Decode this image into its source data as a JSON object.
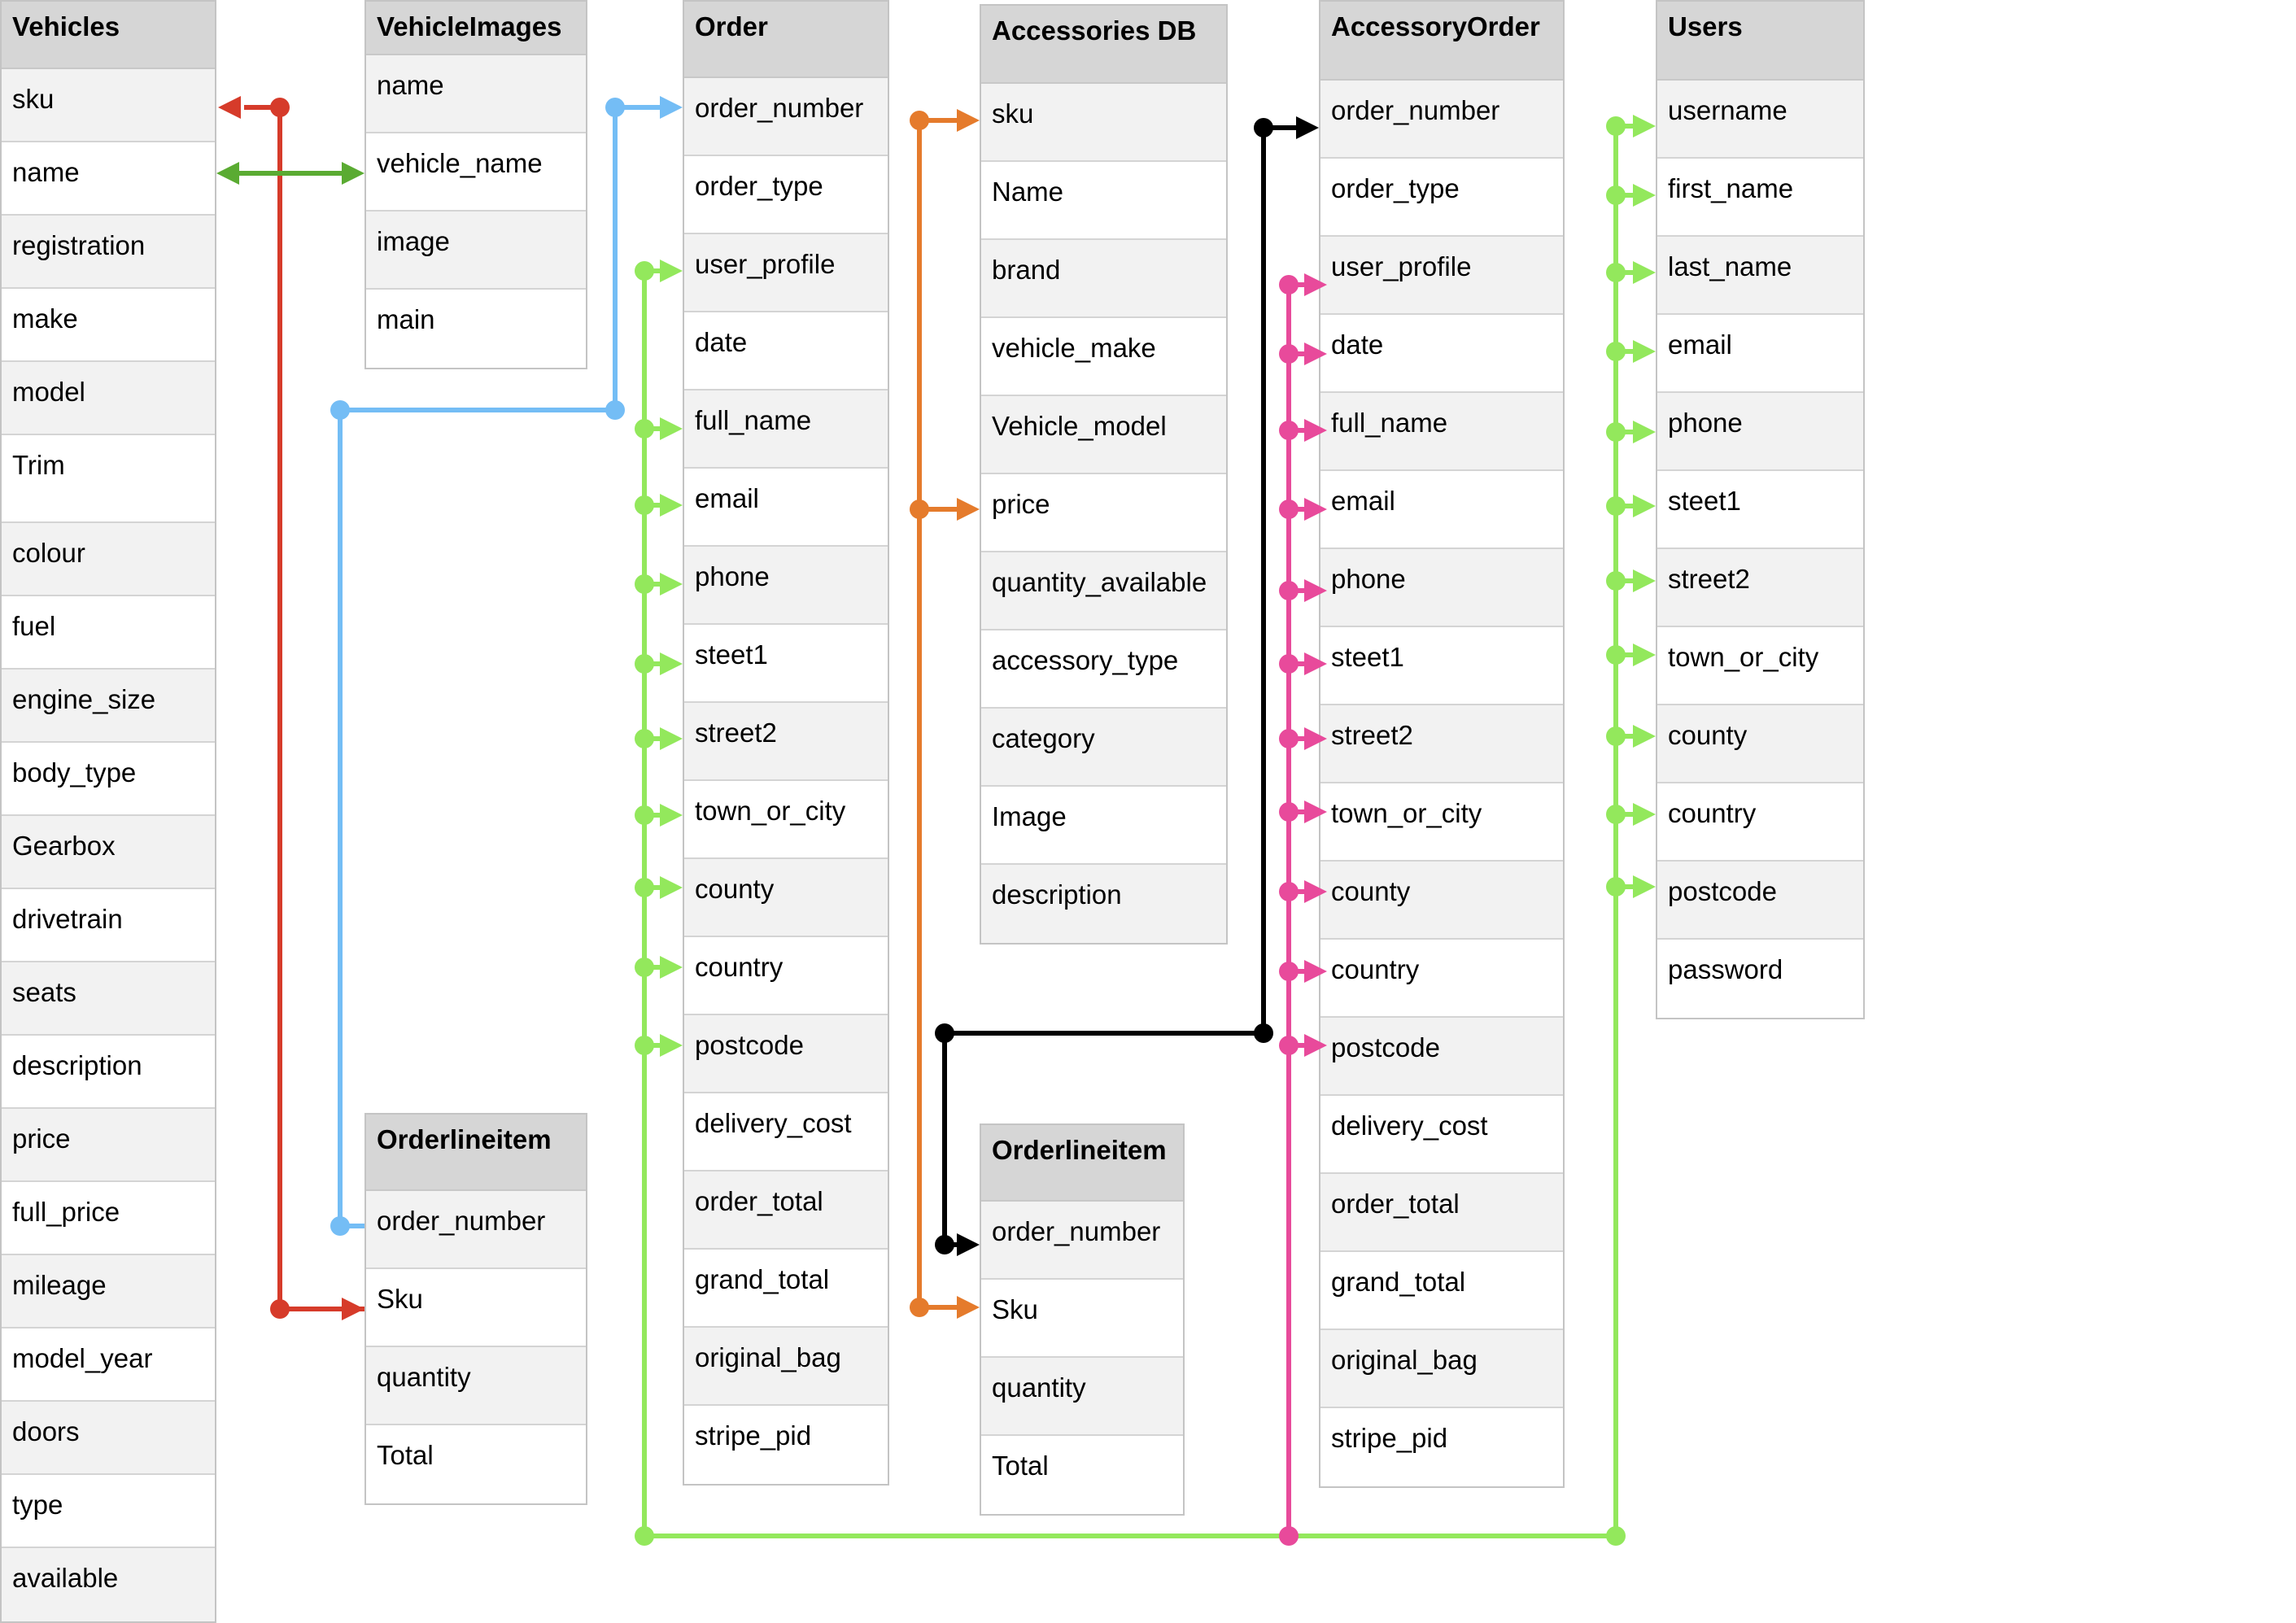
{
  "tables": {
    "vehicles": {
      "title": "Vehicles",
      "fields": [
        "sku",
        "name",
        "registration",
        "make",
        "model",
        "Trim",
        "colour",
        "fuel",
        "engine_size",
        "body_type",
        "Gearbox",
        "drivetrain",
        "seats",
        "description",
        "price",
        "full_price",
        "mileage",
        "model_year",
        "doors",
        "type",
        "available"
      ]
    },
    "vehicle_images": {
      "title": "VehicleImages",
      "fields": [
        "name",
        "vehicle_name",
        "image",
        "main"
      ]
    },
    "order": {
      "title": "Order",
      "fields": [
        "order_number",
        "order_type",
        "user_profile",
        "date",
        "full_name",
        "email",
        "phone",
        "steet1",
        "street2",
        "town_or_city",
        "county",
        "country",
        "postcode",
        "delivery_cost",
        "order_total",
        "grand_total",
        "original_bag",
        "stripe_pid"
      ]
    },
    "accessories_db": {
      "title": "Accessories DB",
      "fields": [
        "sku",
        "Name",
        "brand",
        "vehicle_make",
        "Vehicle_model",
        "price",
        "quantity_available",
        "accessory_type",
        "category",
        "Image",
        "description"
      ]
    },
    "accessory_order": {
      "title": "AccessoryOrder",
      "fields": [
        "order_number",
        "order_type",
        "user_profile",
        "date",
        "full_name",
        "email",
        "phone",
        "steet1",
        "street2",
        "town_or_city",
        "county",
        "country",
        "postcode",
        "delivery_cost",
        "order_total",
        "grand_total",
        "original_bag",
        "stripe_pid"
      ]
    },
    "users": {
      "title": "Users",
      "fields": [
        "username",
        "first_name",
        "last_name",
        "email",
        "phone",
        "steet1",
        "street2",
        "town_or_city",
        "county",
        "country",
        "postcode",
        "password"
      ]
    },
    "orderlineitem_1": {
      "title": "Orderlineitem",
      "fields": [
        "order_number",
        "Sku",
        "quantity",
        "Total"
      ]
    },
    "orderlineitem_2": {
      "title": "Orderlineitem",
      "fields": [
        "order_number",
        "Sku",
        "quantity",
        "Total"
      ]
    }
  },
  "link_colors": {
    "vehicle_sku": "#d63b2a",
    "vehicle_name": "#5aab32",
    "order_number": "#74bdf5",
    "user_profile": "#93e85c",
    "accessory_sku": "#e57b2c",
    "accessory_order_number": "#000000",
    "accessory_user_profile": "#e84a9b"
  }
}
